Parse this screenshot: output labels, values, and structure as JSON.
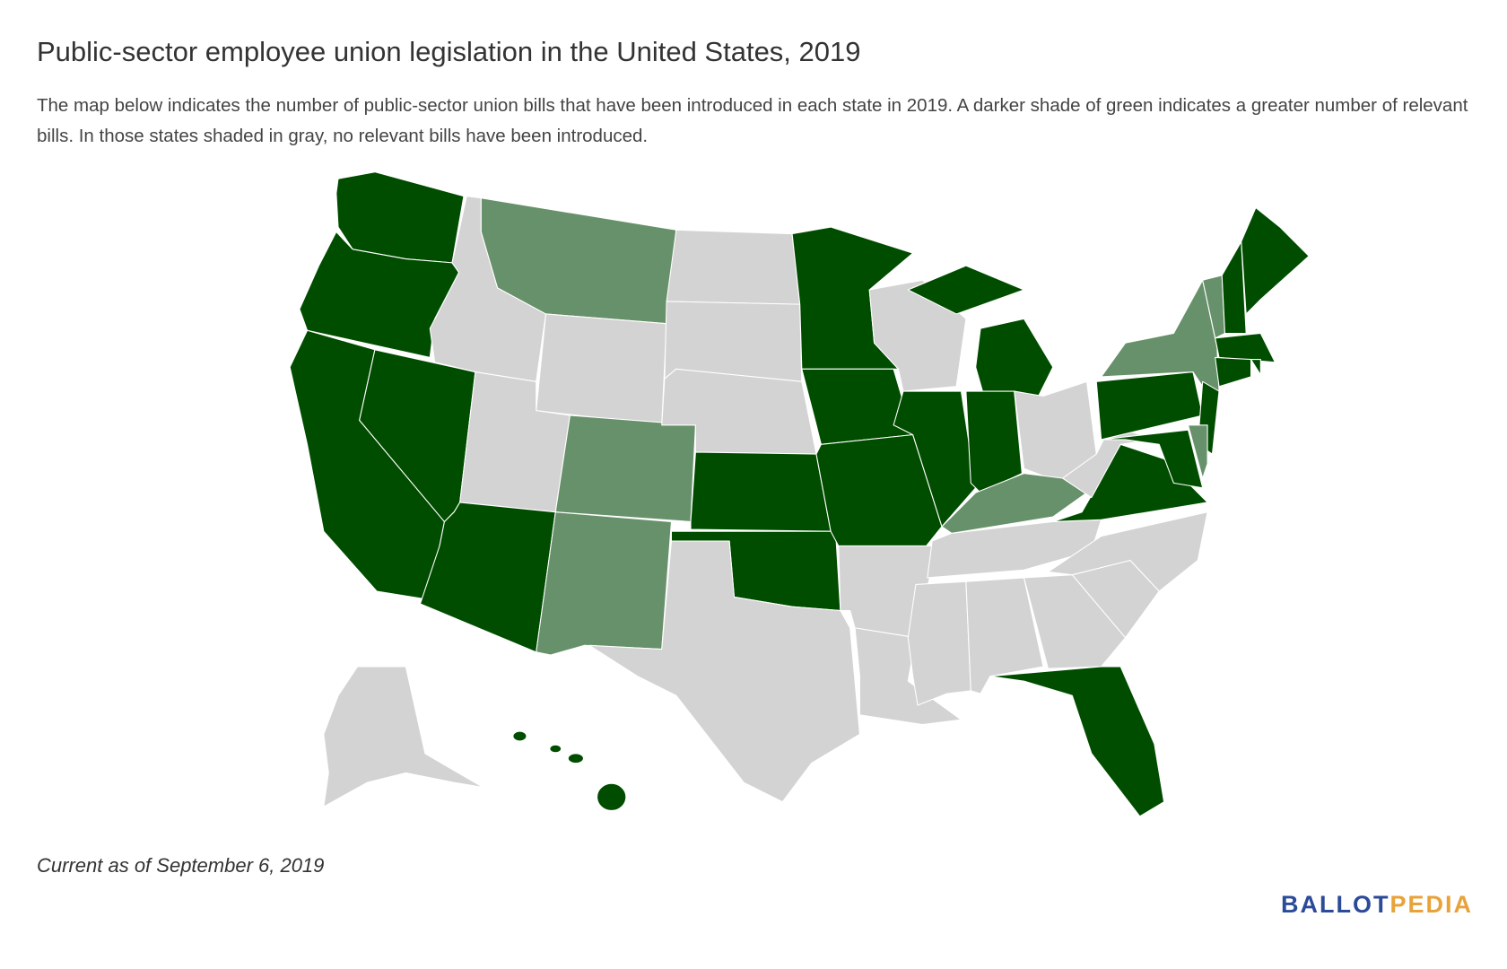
{
  "header": {
    "title": "Public-sector employee union legislation in the United States, 2019",
    "subtitle": "The map below indicates the number of public-sector union bills that have been introduced in each state in 2019. A darker shade of green indicates a greater number of relevant bills. In those states shaded in gray, no relevant bills have been introduced."
  },
  "footer": {
    "note": "Current as of September 6, 2019",
    "logo": {
      "ballot": "BALLOT",
      "pedia": "PEDIA"
    }
  }
}
